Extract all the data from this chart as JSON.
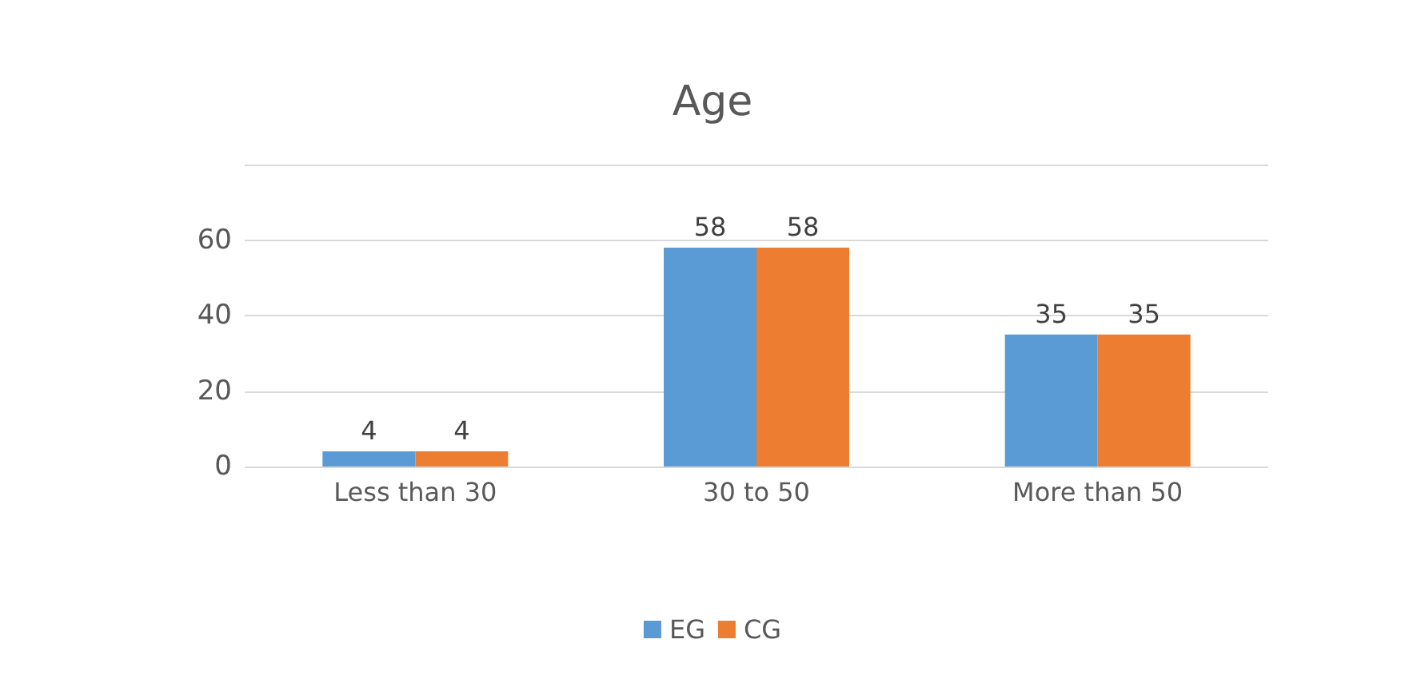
{
  "chart_data": {
    "type": "bar",
    "title": "Age",
    "categories": [
      "Less than 30",
      "30 to 50",
      "More than 50"
    ],
    "series": [
      {
        "name": "EG",
        "color": "#5b9bd5",
        "values": [
          4,
          58,
          35
        ]
      },
      {
        "name": "CG",
        "color": "#ed7d31",
        "values": [
          4,
          58,
          35
        ]
      }
    ],
    "ylim": [
      0,
      80
    ],
    "yticks": [
      0,
      20,
      40,
      60,
      {
        "value": 80,
        "label": null
      }
    ],
    "grid": "y",
    "legend": "bottom",
    "data_labels": true
  }
}
